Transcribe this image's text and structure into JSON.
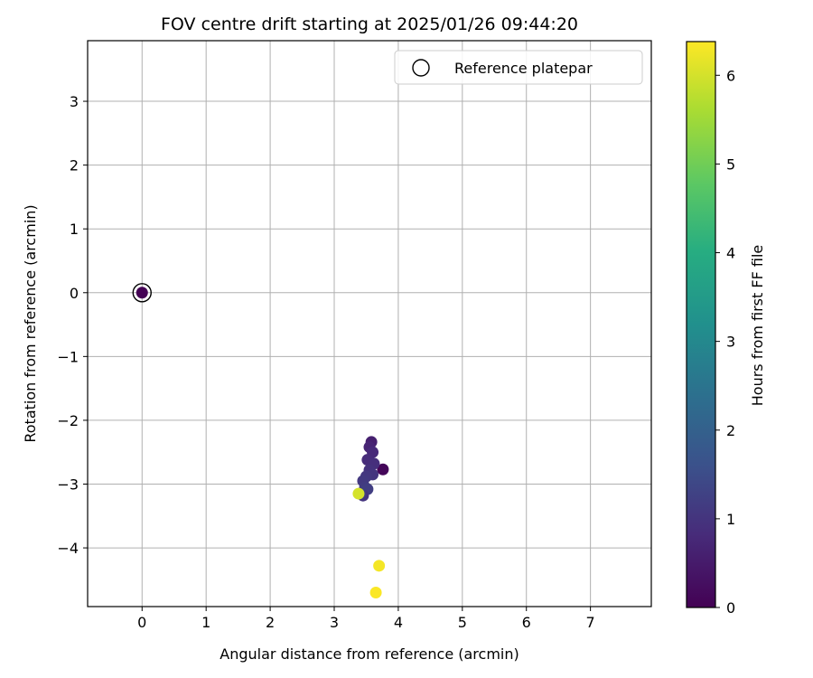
{
  "chart_data": {
    "type": "scatter",
    "title": "FOV centre drift starting at 2025/01/26 09:44:20",
    "xlabel": "Angular distance from reference (arcmin)",
    "ylabel": "Rotation from reference (arcmin)",
    "xlim": [
      -0.85,
      7.95
    ],
    "ylim": [
      -4.92,
      3.95
    ],
    "xticks": [
      0,
      1,
      2,
      3,
      4,
      5,
      6,
      7
    ],
    "yticks": [
      3,
      2,
      1,
      0,
      -1,
      -2,
      -3,
      -4
    ],
    "grid": true,
    "legend": {
      "position": "top-right",
      "entries": [
        "Reference platepar"
      ]
    },
    "reference_point": {
      "x": 0,
      "y": 0
    },
    "colorbar": {
      "label": "Hours from first FF file",
      "range": [
        0,
        6.38
      ],
      "ticks": [
        0,
        1,
        2,
        3,
        4,
        5,
        6
      ],
      "colormap": "viridis"
    },
    "points": [
      {
        "x": 0.0,
        "y": 0.0,
        "hours": 0.0
      },
      {
        "x": 3.76,
        "y": -2.77,
        "hours": 0.1
      },
      {
        "x": 3.58,
        "y": -2.34,
        "hours": 0.6
      },
      {
        "x": 3.55,
        "y": -2.42,
        "hours": 0.7
      },
      {
        "x": 3.6,
        "y": -2.5,
        "hours": 0.8
      },
      {
        "x": 3.52,
        "y": -2.62,
        "hours": 0.85
      },
      {
        "x": 3.62,
        "y": -2.68,
        "hours": 0.9
      },
      {
        "x": 3.55,
        "y": -2.78,
        "hours": 0.95
      },
      {
        "x": 3.6,
        "y": -2.85,
        "hours": 1.0
      },
      {
        "x": 3.5,
        "y": -2.88,
        "hours": 1.05
      },
      {
        "x": 3.45,
        "y": -2.95,
        "hours": 1.1
      },
      {
        "x": 3.48,
        "y": -3.05,
        "hours": 1.15
      },
      {
        "x": 3.52,
        "y": -3.08,
        "hours": 1.2
      },
      {
        "x": 3.45,
        "y": -3.18,
        "hours": 1.0
      },
      {
        "x": 3.4,
        "y": -3.15,
        "hours": 1.25
      },
      {
        "x": 3.38,
        "y": -3.15,
        "hours": 6.0
      },
      {
        "x": 3.7,
        "y": -4.28,
        "hours": 6.3
      },
      {
        "x": 3.65,
        "y": -4.7,
        "hours": 6.35
      }
    ]
  }
}
